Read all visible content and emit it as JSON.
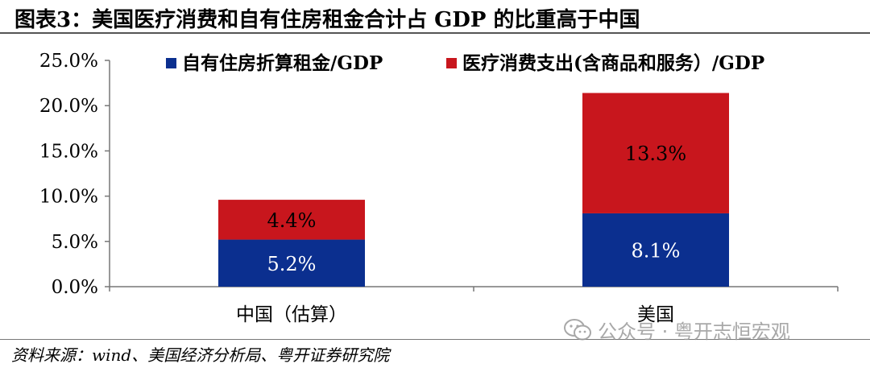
{
  "header": {
    "title": "图表3：美国医疗消费和自有住房租金合计占 GDP 的比重高于中国"
  },
  "chart_data": {
    "type": "bar",
    "stacked": true,
    "categories": [
      "中国（估算）",
      "美国"
    ],
    "series": [
      {
        "name": "自有住房折算租金/GDP",
        "values": [
          5.2,
          8.1
        ],
        "labels": [
          "5.2%",
          "8.1%"
        ],
        "color": "#0b2f8f"
      },
      {
        "name": "医疗消费支出(含商品和服务）/GDP",
        "values": [
          4.4,
          13.3
        ],
        "labels": [
          "4.4%",
          "13.3%"
        ],
        "color": "#c8161d"
      }
    ],
    "ylim": [
      0,
      25
    ],
    "yticks": [
      0,
      5,
      10,
      15,
      20,
      25
    ],
    "ytick_labels": [
      "0.0%",
      "5.0%",
      "10.0%",
      "15.0%",
      "20.0%",
      "25.0%"
    ],
    "legend_position": "top",
    "grid": false
  },
  "footer": {
    "source": "资料来源：wind、美国经济分析局、粤开证券研究院",
    "watermark": "公众号 · 粤开志恒宏观",
    "watermark_icon": "wechat-icon"
  }
}
